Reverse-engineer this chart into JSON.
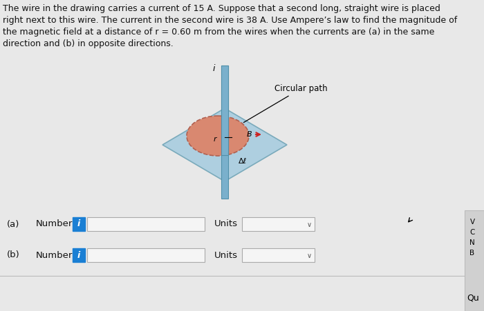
{
  "background_color": "#e8e8e8",
  "text_color": "#111111",
  "paragraph_lines": [
    "The wire in the drawing carries a current of 15 A. Suppose that a second long, straight wire is placed",
    "right next to this wire. The current in the second wire is 38 A. Use Ampere’s law to find the magnitude of",
    "the magnetic field at a distance of r = 0.60 m from the wires when the currents are (a) in the same",
    "direction and (b) in opposite directions."
  ],
  "circular_path_label": "Circular path",
  "wire_color": "#7ab0cc",
  "wire_edge_color": "#5090aa",
  "disk_color": "#d98870",
  "disk_edge_color": "#b06050",
  "platform_color": "#aecfe0",
  "platform_edge_color": "#7aaabb",
  "label_a": "(a)",
  "label_b": "(b)",
  "number_label": "Number",
  "units_label": "Units",
  "info_button_color": "#1a7fd4",
  "input_box_color": "#f5f5f5",
  "input_border_color": "#aaaaaa",
  "dropdown_color": "#f5f5f5",
  "right_panel_color": "#d8d8d8",
  "right_side_text": [
    "V",
    "C",
    "N",
    "B"
  ],
  "qu_text": "Qu",
  "font_size_para": 9.0,
  "font_size_labels": 9.5
}
